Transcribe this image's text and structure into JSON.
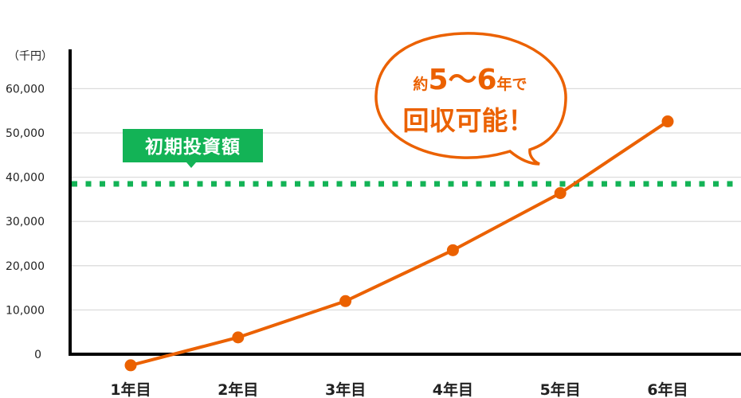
{
  "chart_data": {
    "type": "line",
    "unit_label": "（千円）",
    "categories": [
      "1年目",
      "2年目",
      "3年目",
      "4年目",
      "5年目",
      "6年目"
    ],
    "series": [
      {
        "values": [
          -2500,
          3800,
          12000,
          23500,
          36400,
          52600
        ],
        "color": "#eb6100"
      }
    ],
    "yticks": [
      0,
      10000,
      20000,
      30000,
      40000,
      50000,
      60000
    ],
    "ytick_labels": [
      "0",
      "10,000",
      "20,000",
      "30,000",
      "40,000",
      "50,000",
      "60,000"
    ],
    "ylim": [
      -5000,
      68000
    ],
    "grid": true,
    "reference_line": {
      "label": "初期投資額",
      "value": 38500,
      "color": "#13b356",
      "style": "dotted"
    },
    "callout": {
      "line1_prefix": "約",
      "line1_emph": "5～6",
      "line1_suffix": "年で",
      "line2": "回収可能！",
      "color": "#eb6100"
    }
  }
}
